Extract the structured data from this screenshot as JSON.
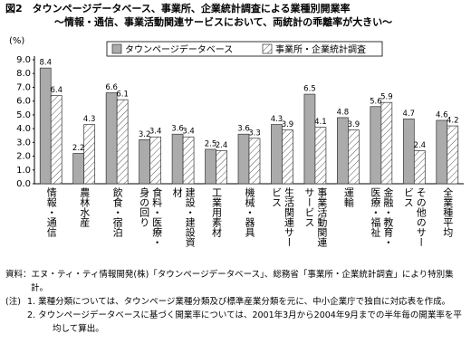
{
  "chart_data": {
    "type": "bar",
    "title": "図2　タウンページデータベース、事業所、企業統計調査による業種別開業率",
    "subtitle": "～情報・通信、事業活動関連サービスにおいて、両統計の乖離率が大きい～",
    "y_unit": "(%)",
    "categories": [
      "情報・通信",
      "農林水産",
      "飲食・宿泊",
      "食料・医療・身の回り",
      "建設・建設資材",
      "工業用素材",
      "機械・器具",
      "生活関連サービス",
      "事業活動関連サービス",
      "運輸",
      "金融・教育・医療・福祉",
      "その他のサービス",
      "全業種平均"
    ],
    "series": [
      {
        "name": "タウンページデータベース",
        "color": "#ababab",
        "hatch": false,
        "values": [
          8.4,
          2.2,
          6.6,
          3.2,
          3.6,
          2.5,
          3.6,
          4.3,
          6.5,
          4.8,
          5.6,
          4.7,
          4.6
        ]
      },
      {
        "name": "事業所・企業統計調査",
        "color": "#ffffff",
        "hatch": true,
        "values": [
          6.4,
          4.3,
          6.1,
          3.4,
          3.4,
          2.4,
          3.3,
          3.9,
          4.1,
          3.9,
          5.9,
          2.4,
          4.2
        ]
      }
    ],
    "ylim": [
      0,
      9
    ],
    "yticks": [
      {
        "value": 0,
        "label": "0.0"
      },
      {
        "value": 1,
        "label": "1.0"
      },
      {
        "value": 2,
        "label": "2.0"
      },
      {
        "value": 3,
        "label": "3.0"
      },
      {
        "value": 4,
        "label": "4.0"
      },
      {
        "value": 5,
        "label": "5.0"
      },
      {
        "value": 6,
        "label": "6.0"
      },
      {
        "value": 7,
        "label": "7.0"
      },
      {
        "value": 8,
        "label": "8.0"
      },
      {
        "value": 9,
        "label": "9.0"
      }
    ],
    "source": "資料：エヌ・ティ・ティ情報開発(株)「タウンページデータベース」、総務省「事業所・企業統計調査」により特別集計。",
    "notes_label": "(注)",
    "notes": [
      "1. 業種分類については、タウンページ業種分類及び標準産業分類を元に、中小企業庁で独自に対応表を作成。",
      "2. タウンページデータベースに基づく開業率については、2001年3月から2004年9月までの半年毎の開業率を平均して算出。"
    ]
  }
}
